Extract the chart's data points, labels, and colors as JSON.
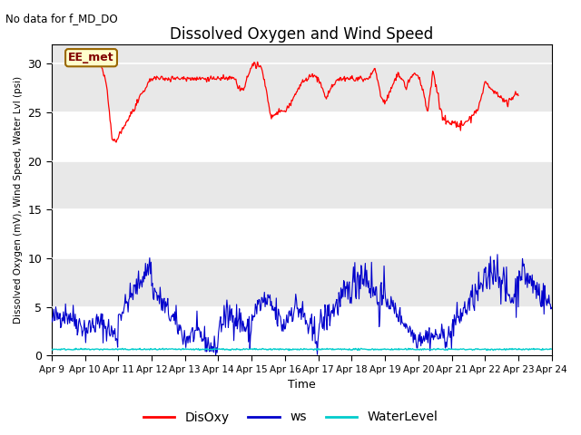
{
  "title": "Dissolved Oxygen and Wind Speed",
  "subtitle": "No data for f_MD_DO",
  "xlabel": "Time",
  "ylabel": "Dissolved Oxygen (mV), Wind Speed, Water Lvl (psi)",
  "annotation": "EE_met",
  "ylim": [
    0,
    32
  ],
  "yticks": [
    0,
    5,
    10,
    15,
    20,
    25,
    30
  ],
  "xtick_labels": [
    "Apr 9",
    "Apr 10",
    "Apr 11",
    "Apr 12",
    "Apr 13",
    "Apr 14",
    "Apr 15",
    "Apr 16",
    "Apr 17",
    "Apr 18",
    "Apr 19",
    "Apr 20",
    "Apr 21",
    "Apr 22",
    "Apr 23",
    "Apr 24"
  ],
  "plot_bg_color": "#e8e8e8",
  "band_color": "#d0d0d0",
  "disoxy_color": "#ff0000",
  "ws_color": "#0000cc",
  "wl_color": "#00cccc",
  "legend_labels": [
    "DisOxy",
    "ws",
    "WaterLevel"
  ],
  "title_fontsize": 12,
  "axis_fontsize": 8,
  "ylabel_fontsize": 8
}
